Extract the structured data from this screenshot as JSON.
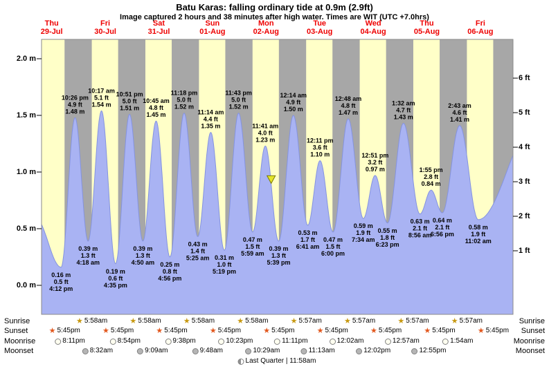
{
  "header": {
    "title": "Batu Karas: falling  ordinary tide at 0.9m (2.9ft)",
    "subtitle": "Image captured 2 hours and 38 minutes after high water. Times are WIT (UTC +7.0hrs)"
  },
  "days": [
    {
      "dow": "Thu",
      "date": "29-Jul"
    },
    {
      "dow": "Fri",
      "date": "30-Jul"
    },
    {
      "dow": "Sat",
      "date": "31-Jul"
    },
    {
      "dow": "Sun",
      "date": "01-Aug"
    },
    {
      "dow": "Mon",
      "date": "02-Aug"
    },
    {
      "dow": "Tue",
      "date": "03-Aug"
    },
    {
      "dow": "Wed",
      "date": "04-Aug"
    },
    {
      "dow": "Thu",
      "date": "05-Aug"
    },
    {
      "dow": "Fri",
      "date": "06-Aug"
    }
  ],
  "axes": {
    "left_labels": [
      {
        "text": "2.0 m",
        "value_m": 2.0
      },
      {
        "text": "1.5 m",
        "value_m": 1.5
      },
      {
        "text": "1.0 m",
        "value_m": 1.0
      },
      {
        "text": "0.5 m",
        "value_m": 0.5
      },
      {
        "text": "0.0 m",
        "value_m": 0.0
      }
    ],
    "right_labels": [
      {
        "text": "6 ft",
        "value_ft": 6
      },
      {
        "text": "5 ft",
        "value_ft": 5
      },
      {
        "text": "4 ft",
        "value_ft": 4
      },
      {
        "text": "3 ft",
        "value_ft": 3
      },
      {
        "text": "2 ft",
        "value_ft": 2
      },
      {
        "text": "1 ft",
        "value_ft": 1
      }
    ]
  },
  "chart_data": {
    "type": "area",
    "y_unit_left": "m",
    "y_unit_right": "ft",
    "ylim_m": [
      0.0,
      2.0
    ],
    "yticks_m": [
      0.0,
      0.5,
      1.0,
      1.5,
      2.0
    ],
    "yticks_ft": [
      1,
      2,
      3,
      4,
      5,
      6
    ],
    "tide_events": [
      {
        "day": 0,
        "type": "low",
        "time": "4:12 pm",
        "height_m": 0.16,
        "height_ft": 0.5
      },
      {
        "day": 0,
        "type": "high",
        "time": "10:26 pm",
        "height_m": 1.48,
        "height_ft": 4.9
      },
      {
        "day": 1,
        "type": "low",
        "time": "4:18 am",
        "height_m": 0.39,
        "height_ft": 1.3
      },
      {
        "day": 1,
        "type": "high",
        "time": "10:17 am",
        "height_m": 1.54,
        "height_ft": 5.1
      },
      {
        "day": 1,
        "type": "low",
        "time": "4:35 pm",
        "height_m": 0.19,
        "height_ft": 0.6
      },
      {
        "day": 1,
        "type": "high",
        "time": "10:51 pm",
        "height_m": 1.51,
        "height_ft": 5.0
      },
      {
        "day": 2,
        "type": "low",
        "time": "4:50 am",
        "height_m": 0.39,
        "height_ft": 1.3
      },
      {
        "day": 2,
        "type": "high",
        "time": "10:45 am",
        "height_m": 1.45,
        "height_ft": 4.8
      },
      {
        "day": 2,
        "type": "low",
        "time": "4:56 pm",
        "height_m": 0.25,
        "height_ft": 0.8
      },
      {
        "day": 2,
        "type": "high",
        "time": "11:18 pm",
        "height_m": 1.52,
        "height_ft": 5.0
      },
      {
        "day": 3,
        "type": "low",
        "time": "5:25 am",
        "height_m": 0.43,
        "height_ft": 1.4
      },
      {
        "day": 3,
        "type": "high",
        "time": "11:14 am",
        "height_m": 1.35,
        "height_ft": 4.4
      },
      {
        "day": 3,
        "type": "low",
        "time": "5:19 pm",
        "height_m": 0.31,
        "height_ft": 1.0
      },
      {
        "day": 3,
        "type": "high",
        "time": "11:43 pm",
        "height_m": 1.52,
        "height_ft": 5.0
      },
      {
        "day": 4,
        "type": "low",
        "time": "5:59 am",
        "height_m": 0.47,
        "height_ft": 1.5
      },
      {
        "day": 4,
        "type": "high",
        "time": "11:41 am",
        "height_m": 1.23,
        "height_ft": 4.0
      },
      {
        "day": 4,
        "type": "low",
        "time": "5:39 pm",
        "height_m": 0.39,
        "height_ft": 1.3
      },
      {
        "day": 5,
        "type": "high",
        "time": "12:14 am",
        "height_m": 1.5,
        "height_ft": 4.9
      },
      {
        "day": 5,
        "type": "low",
        "time": "6:41 am",
        "height_m": 0.53,
        "height_ft": 1.7
      },
      {
        "day": 5,
        "type": "high",
        "time": "12:11 pm",
        "height_m": 1.1,
        "height_ft": 3.6
      },
      {
        "day": 5,
        "type": "low",
        "time": "6:00 pm",
        "height_m": 0.47,
        "height_ft": 1.5
      },
      {
        "day": 6,
        "type": "high",
        "time": "12:48 am",
        "height_m": 1.47,
        "height_ft": 4.8
      },
      {
        "day": 6,
        "type": "low",
        "time": "7:34 am",
        "height_m": 0.59,
        "height_ft": 1.9
      },
      {
        "day": 6,
        "type": "high",
        "time": "12:51 pm",
        "height_m": 0.97,
        "height_ft": 3.2
      },
      {
        "day": 6,
        "type": "low",
        "time": "6:23 pm",
        "height_m": 0.55,
        "height_ft": 1.8
      },
      {
        "day": 7,
        "type": "high",
        "time": "1:32 am",
        "height_m": 1.43,
        "height_ft": 4.7
      },
      {
        "day": 7,
        "type": "low",
        "time": "8:56 am",
        "height_m": 0.63,
        "height_ft": 2.1
      },
      {
        "day": 7,
        "type": "high",
        "time": "1:55 pm",
        "height_m": 0.84,
        "height_ft": 2.8
      },
      {
        "day": 7,
        "type": "low",
        "time": "6:56 pm",
        "height_m": 0.64,
        "height_ft": 2.1
      },
      {
        "day": 8,
        "type": "high",
        "time": "2:43 am",
        "height_m": 1.41,
        "height_ft": 4.6
      },
      {
        "day": 8,
        "type": "low",
        "time": "11:02 am",
        "height_m": 0.58,
        "height_ft": 1.9
      }
    ],
    "curve_edge_anchors": [
      {
        "t_hours": 4.6,
        "height_m": 0.6
      },
      {
        "t_hours": 229.0,
        "height_m": 1.45
      }
    ],
    "current_marker": {
      "t_hours": 110.3,
      "height_m": 0.9,
      "symbol": "down-triangle"
    }
  },
  "astro": {
    "rows": [
      {
        "id": "sunrise",
        "label": "Sunrise",
        "icon": "sunrise-star",
        "events": [
          {
            "day": 1,
            "time": "5:58am"
          },
          {
            "day": 2,
            "time": "5:58am"
          },
          {
            "day": 3,
            "time": "5:58am"
          },
          {
            "day": 4,
            "time": "5:58am"
          },
          {
            "day": 5,
            "time": "5:57am"
          },
          {
            "day": 6,
            "time": "5:57am"
          },
          {
            "day": 7,
            "time": "5:57am"
          },
          {
            "day": 8,
            "time": "5:57am"
          }
        ]
      },
      {
        "id": "sunset",
        "label": "Sunset",
        "icon": "sunset-star",
        "events": [
          {
            "day": 0,
            "time": "5:45pm"
          },
          {
            "day": 1,
            "time": "5:45pm"
          },
          {
            "day": 2,
            "time": "5:45pm"
          },
          {
            "day": 3,
            "time": "5:45pm"
          },
          {
            "day": 4,
            "time": "5:45pm"
          },
          {
            "day": 5,
            "time": "5:45pm"
          },
          {
            "day": 6,
            "time": "5:45pm"
          },
          {
            "day": 7,
            "time": "5:45pm"
          },
          {
            "day": 8,
            "time": "5:45pm"
          }
        ]
      },
      {
        "id": "moonrise",
        "label": "Moonrise",
        "icon": "moon-bright",
        "events": [
          {
            "day": 0,
            "time": "8:11pm"
          },
          {
            "day": 1,
            "time": "8:54pm"
          },
          {
            "day": 2,
            "time": "9:38pm"
          },
          {
            "day": 3,
            "time": "10:23pm"
          },
          {
            "day": 4,
            "time": "11:11pm"
          },
          {
            "day": 6,
            "time": "12:02am"
          },
          {
            "day": 7,
            "time": "12:57am"
          },
          {
            "day": 8,
            "time": "1:54am"
          }
        ]
      },
      {
        "id": "moonset",
        "label": "Moonset",
        "icon": "moon-dark",
        "events": [
          {
            "day": 1,
            "time": "8:32am"
          },
          {
            "day": 2,
            "time": "9:09am"
          },
          {
            "day": 3,
            "time": "9:48am"
          },
          {
            "day": 4,
            "time": "10:29am"
          },
          {
            "day": 5,
            "time": "11:13am"
          },
          {
            "day": 6,
            "time": "12:02pm"
          },
          {
            "day": 7,
            "time": "12:55pm"
          }
        ]
      }
    ],
    "moon_phase": {
      "label": "Last Quarter",
      "separator": "|",
      "time": "11:58am"
    }
  },
  "colors": {
    "day_background": "#ffffc8",
    "night_band": "#a7a7a7",
    "tide_fill": "#a9b3f3",
    "tide_stroke": "#8493e0",
    "day_label": "#ee0000",
    "text": "#000000",
    "sunrise_star": "#c79810",
    "sunset_star": "#e2571d",
    "moon_bright": "#fffff0",
    "moon_dark": "#b5b5b5",
    "marker_fill": "#e4e42a",
    "marker_stroke": "#7a7a00"
  }
}
